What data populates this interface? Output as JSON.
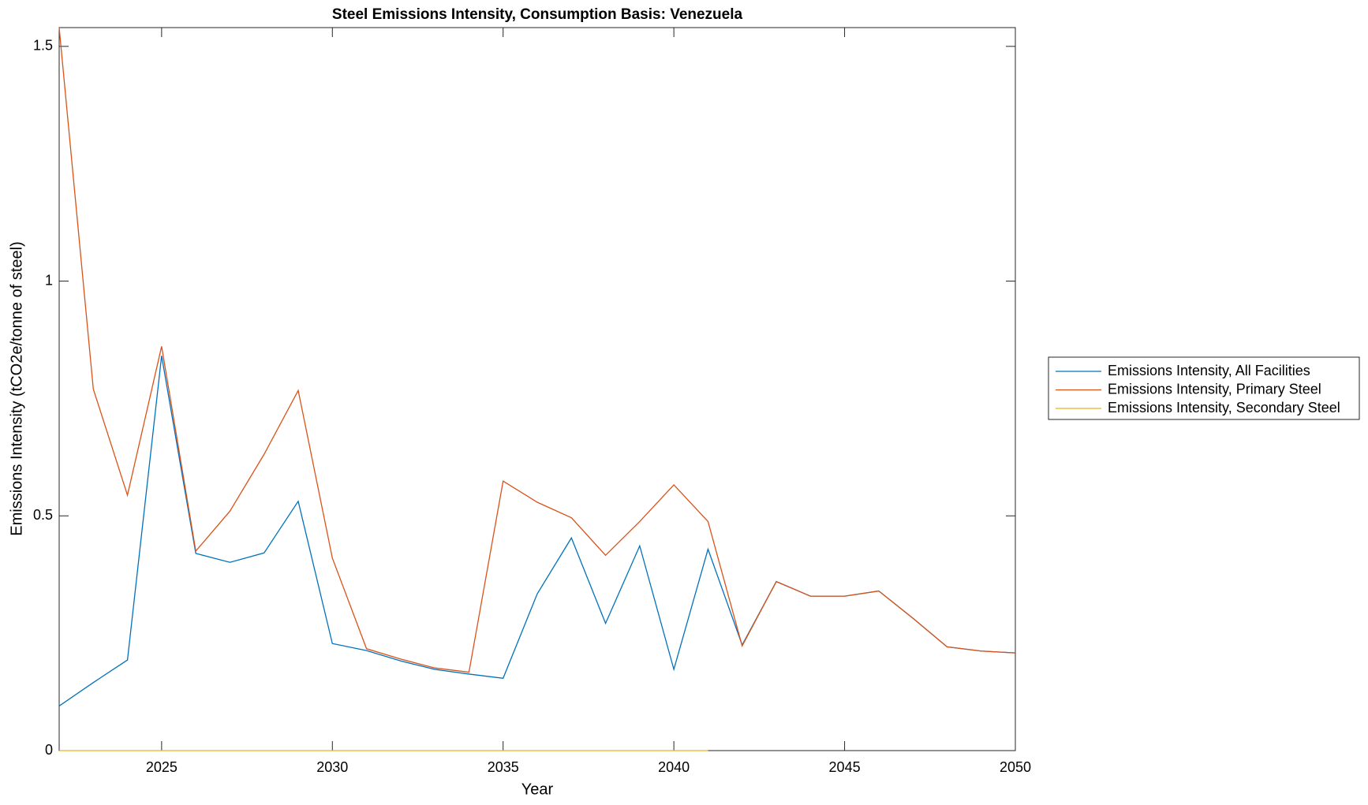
{
  "chart_data": {
    "type": "line",
    "title": "Steel Emissions Intensity, Consumption Basis: Venezuela",
    "x_label": "Year",
    "y_label": "Emissions Intensity (tCO2e/tonne of steel)",
    "x": [
      2022,
      2023,
      2024,
      2025,
      2026,
      2027,
      2028,
      2029,
      2030,
      2031,
      2032,
      2033,
      2034,
      2035,
      2036,
      2037,
      2038,
      2039,
      2040,
      2041,
      2042,
      2043,
      2044,
      2045,
      2046,
      2047,
      2048,
      2049,
      2050
    ],
    "series": [
      {
        "name": "Emissions Intensity, All Facilities",
        "color": "#0072bd",
        "values": [
          0.095,
          0.145,
          0.193,
          0.841,
          0.42,
          0.401,
          0.421,
          0.531,
          0.228,
          0.213,
          0.191,
          0.173,
          0.163,
          0.154,
          0.334,
          0.453,
          0.271,
          0.436,
          0.173,
          0.429,
          0.225,
          0.36,
          0.329,
          0.329,
          0.34,
          0.282,
          0.221,
          0.212,
          0.208
        ]
      },
      {
        "name": "Emissions Intensity, Primary Steel",
        "color": "#d95319",
        "values": [
          1.54,
          0.77,
          0.544,
          0.861,
          0.425,
          0.51,
          0.631,
          0.767,
          0.41,
          0.217,
          0.195,
          0.176,
          0.167,
          0.574,
          0.529,
          0.496,
          0.416,
          0.488,
          0.566,
          0.488,
          0.223,
          0.36,
          0.329,
          0.329,
          0.34,
          0.282,
          0.221,
          0.212,
          0.208
        ]
      },
      {
        "name": "Emissions Intensity, Secondary Steel",
        "color": "#edb120",
        "values": [
          0,
          0,
          0,
          0,
          0,
          0,
          0,
          0,
          0,
          0,
          0,
          0,
          0,
          0,
          0,
          0,
          0,
          0,
          0,
          0,
          null,
          null,
          null,
          null,
          null,
          null,
          null,
          null,
          null
        ]
      }
    ],
    "xlim": [
      2022,
      2050
    ],
    "xticks": [
      2025,
      2030,
      2035,
      2040,
      2045,
      2050
    ],
    "ylim": [
      0,
      1.54
    ],
    "yticks": [
      0,
      0.5,
      1,
      1.5
    ],
    "legend": "right",
    "grid": false
  }
}
